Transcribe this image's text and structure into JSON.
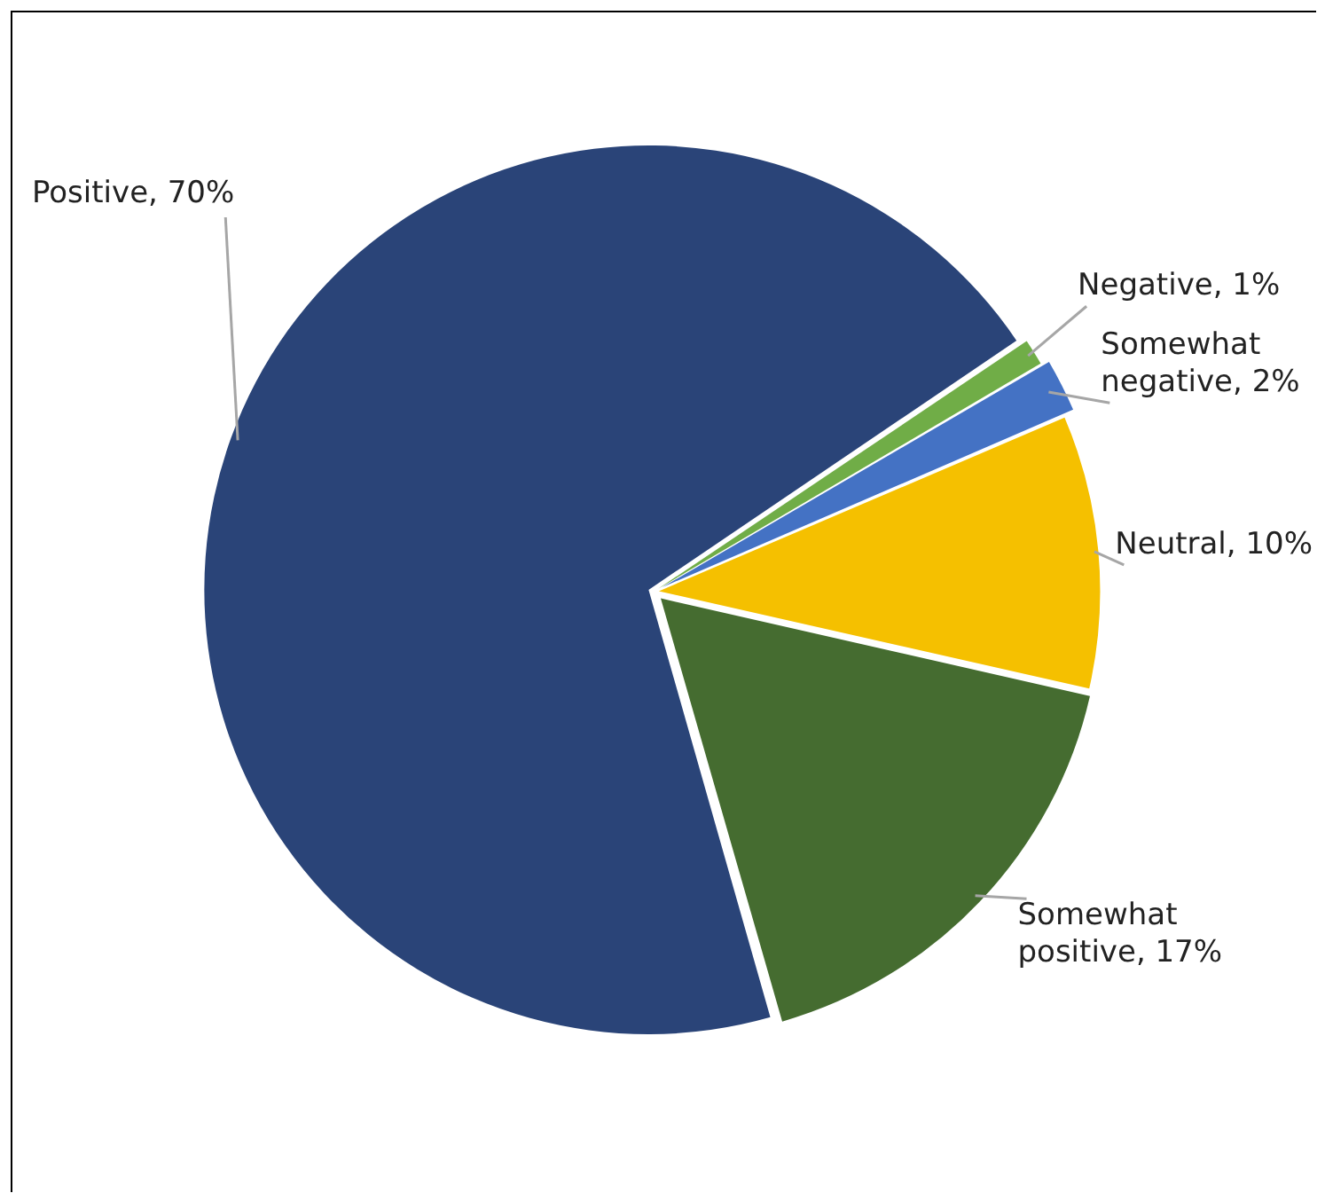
{
  "chart_data": {
    "type": "pie",
    "categories": [
      "Negative",
      "Somewhat negative",
      "Neutral",
      "Somewhat positive",
      "Positive"
    ],
    "values": [
      1,
      2,
      10,
      17,
      70
    ],
    "colors": [
      "#70ad47",
      "#4472c4",
      "#f5c000",
      "#456c30",
      "#2a4478"
    ],
    "value_labels": [
      "1%",
      "2%",
      "10%",
      "17%",
      "70%"
    ]
  }
}
